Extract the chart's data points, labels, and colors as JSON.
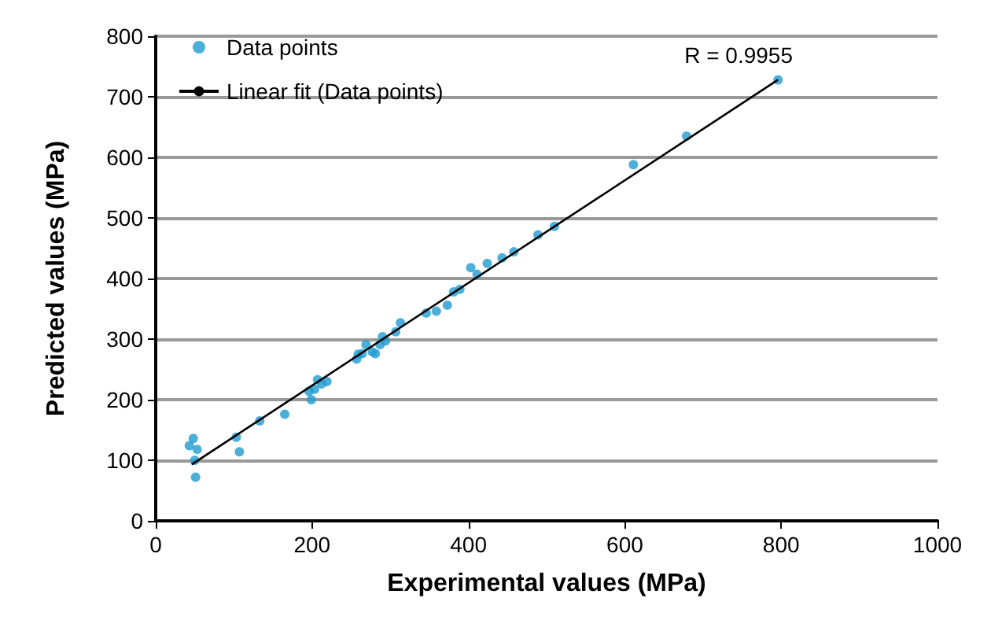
{
  "chart_data": {
    "type": "scatter",
    "xlabel": "Experimental values (MPa)",
    "ylabel": "Predicted values (MPa)",
    "xlim": [
      0,
      1000
    ],
    "xticks": [
      0,
      200,
      400,
      600,
      800,
      1000
    ],
    "ylim": [
      0,
      800
    ],
    "yticks": [
      0,
      100,
      200,
      300,
      400,
      500,
      600,
      700,
      800
    ],
    "grid": "y",
    "legend": "top left",
    "marker": "circle",
    "annotations": [
      "R = 0.9955"
    ],
    "series": [
      {
        "name": "Data points",
        "color": "#1f9bd1",
        "x": [
          43,
          48,
          53,
          50,
          51,
          103,
          107,
          133,
          165,
          199,
          196,
          203,
          207,
          212,
          219,
          257,
          259,
          264,
          269,
          277,
          281,
          287,
          290,
          294,
          307,
          313,
          346,
          359,
          373,
          381,
          389,
          403,
          411,
          424,
          443,
          458,
          489,
          510,
          611,
          679,
          796
        ],
        "values": [
          124,
          136,
          118,
          100,
          72,
          138,
          114,
          165,
          176,
          200,
          214,
          217,
          233,
          226,
          230,
          267,
          275,
          276,
          291,
          279,
          276,
          291,
          304,
          297,
          312,
          327,
          343,
          346,
          356,
          378,
          382,
          418,
          407,
          425,
          434,
          444,
          472,
          486,
          588,
          635,
          728
        ]
      },
      {
        "name": "Linear fit (Data points)",
        "type": "line",
        "color": "#000000",
        "marker": "none",
        "line_style": "solid",
        "x": [
          46,
          796
        ],
        "values": [
          93,
          728
        ]
      }
    ]
  }
}
